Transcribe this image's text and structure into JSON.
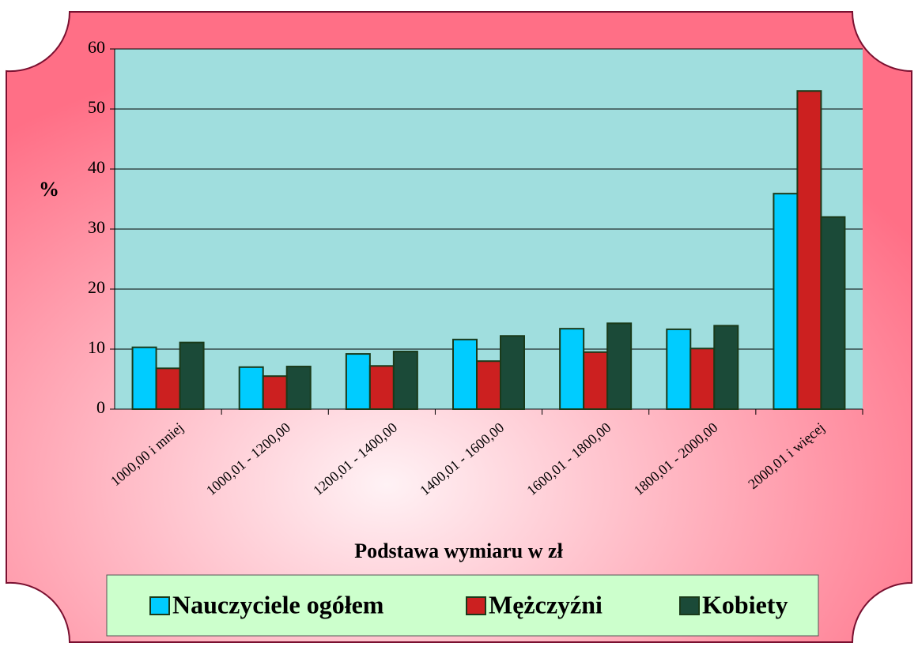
{
  "chart_data": {
    "type": "bar",
    "x_label": "Podstawa wymiaru w zł",
    "y_label": "%",
    "categories": [
      "1000,00 i mniej",
      "1000,01 - 1200,00",
      "1200,01 - 1400,00",
      "1400,01 - 1600,00",
      "1600,01 - 1800,00",
      "1800,01 - 2000,00",
      "2000,01 i więcej"
    ],
    "series": [
      {
        "name": "Nauczyciele ogółem",
        "color": "#00ccff",
        "values": [
          10.3,
          7.0,
          9.2,
          11.6,
          13.4,
          13.3,
          35.9
        ]
      },
      {
        "name": "Mężczyźni",
        "color": "#cc2020",
        "values": [
          6.8,
          5.5,
          7.2,
          8.0,
          9.5,
          10.1,
          53.0
        ]
      },
      {
        "name": "Kobiety",
        "color": "#1b4a38",
        "values": [
          11.1,
          7.1,
          9.6,
          12.2,
          14.3,
          13.9,
          32.0
        ]
      }
    ],
    "ylim": [
      0,
      60
    ],
    "yticks": [
      0,
      10,
      20,
      30,
      40,
      50,
      60
    ],
    "grid": true,
    "legend": "bottom"
  }
}
